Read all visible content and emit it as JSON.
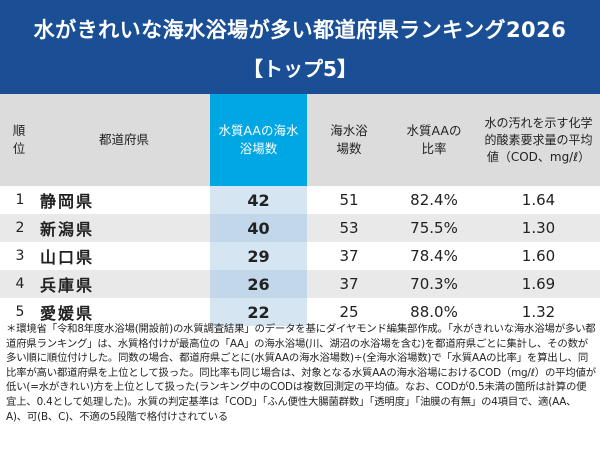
{
  "header": {
    "title": "水がきれいな海水浴場が多い都道府県ランキング2026",
    "subtitle": "【トップ5】"
  },
  "table": {
    "headers": {
      "rank": "順位",
      "prefecture": "都道府県",
      "aa_count": "水質AAの海水浴場数",
      "beach_count": "海水浴場数",
      "aa_ratio": "水質AAの比率",
      "cod": "水の汚れを示す化学的酸素要求量の平均値（COD、mg/ℓ）"
    },
    "rows": [
      {
        "rank": "1",
        "prefecture": "静岡県",
        "aa_count": "42",
        "beach_count": "51",
        "aa_ratio": "82.4%",
        "cod": "1.64"
      },
      {
        "rank": "2",
        "prefecture": "新潟県",
        "aa_count": "40",
        "beach_count": "53",
        "aa_ratio": "75.5%",
        "cod": "1.30"
      },
      {
        "rank": "3",
        "prefecture": "山口県",
        "aa_count": "29",
        "beach_count": "37",
        "aa_ratio": "78.4%",
        "cod": "1.60"
      },
      {
        "rank": "4",
        "prefecture": "兵庫県",
        "aa_count": "26",
        "beach_count": "37",
        "aa_ratio": "70.3%",
        "cod": "1.69"
      },
      {
        "rank": "5",
        "prefecture": "愛媛県",
        "aa_count": "22",
        "beach_count": "25",
        "aa_ratio": "88.0%",
        "cod": "1.32"
      }
    ]
  },
  "note": "＊環境省「令和8年度水浴場(開設前)の水質調査結果」のデータを基にダイヤモンド編集部作成。「水がきれいな海水浴場が多い都道府県ランキング」は、水質格付けが最高位の「AA」の海水浴場(川、湖沼の水浴場を含む)を都道府県ごとに集計し、その数が多い順に順位付けした。同数の場合、都道府県ごとに(水質AAの海水浴場数)÷(全海水浴場数)で「水質AAの比率」を算出し、同比率が高い都道府県を上位として扱った。同比率も同じ場合は、対象となる水質AAの海水浴場におけるCOD（mg/ℓ）の平均値が低い(=水がきれい)方を上位として扱った(ランキング中のCODは複数回測定の平均値。なお、CODが0.5未満の箇所は計算の便宜上、0.4として処理した)。水質の判定基準は「COD」「ふん便性大腸菌群数」「透明度」「油膜の有無」の4項目で、適(AA、A)、可(B、C)、不適の5段階で格付けされている",
  "colors": {
    "header_bg": "#1a4f96",
    "highlight_header": "#00a7e3",
    "highlight_col": "#c9dcee",
    "thead_bg": "#dcdcdc",
    "row_even": "#e9e9e9"
  }
}
